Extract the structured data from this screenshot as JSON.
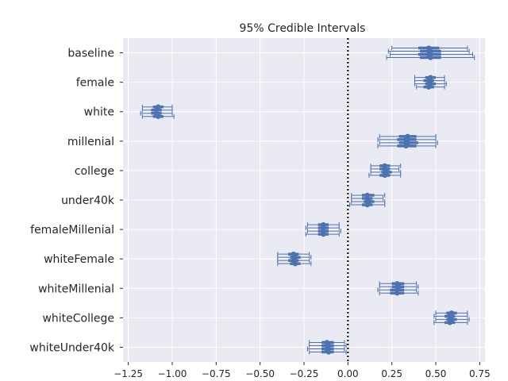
{
  "chart_data": {
    "type": "forest",
    "title": "95% Credible Intervals",
    "xlabel": "",
    "ylabel": "",
    "xlim": [
      -1.28,
      0.78
    ],
    "xticks": [
      -1.25,
      -1.0,
      -0.75,
      -0.5,
      -0.25,
      0.0,
      0.25,
      0.5,
      0.75
    ],
    "xtick_labels": [
      "−1.25",
      "−1.00",
      "−0.75",
      "−0.50",
      "−0.25",
      "0.00",
      "0.25",
      "0.50",
      "0.75"
    ],
    "reference_line": 0.0,
    "grid": true,
    "colors": {
      "background": "#eaeaf2",
      "grid": "#ffffff",
      "marker": "#4c72b0",
      "reference": "#000000"
    },
    "chains_per_variable": 4,
    "variables": [
      {
        "name": "baseline",
        "chains": [
          {
            "mean": 0.46,
            "low": 0.25,
            "high": 0.68,
            "q25": 0.4,
            "q75": 0.52
          },
          {
            "mean": 0.47,
            "low": 0.23,
            "high": 0.69,
            "q25": 0.41,
            "q75": 0.53
          },
          {
            "mean": 0.46,
            "low": 0.24,
            "high": 0.71,
            "q25": 0.4,
            "q75": 0.53
          },
          {
            "mean": 0.47,
            "low": 0.22,
            "high": 0.72,
            "q25": 0.41,
            "q75": 0.53
          }
        ]
      },
      {
        "name": "female",
        "chains": [
          {
            "mean": 0.47,
            "low": 0.38,
            "high": 0.55,
            "q25": 0.44,
            "q75": 0.5
          },
          {
            "mean": 0.46,
            "low": 0.38,
            "high": 0.55,
            "q25": 0.43,
            "q75": 0.49
          },
          {
            "mean": 0.47,
            "low": 0.38,
            "high": 0.56,
            "q25": 0.44,
            "q75": 0.5
          },
          {
            "mean": 0.46,
            "low": 0.39,
            "high": 0.55,
            "q25": 0.43,
            "q75": 0.49
          }
        ]
      },
      {
        "name": "white",
        "chains": [
          {
            "mean": -1.08,
            "low": -1.17,
            "high": -1.0,
            "q25": -1.11,
            "q75": -1.05
          },
          {
            "mean": -1.09,
            "low": -1.17,
            "high": -1.0,
            "q25": -1.12,
            "q75": -1.06
          },
          {
            "mean": -1.09,
            "low": -1.18,
            "high": -1.0,
            "q25": -1.12,
            "q75": -1.06
          },
          {
            "mean": -1.08,
            "low": -1.17,
            "high": -0.99,
            "q25": -1.11,
            "q75": -1.05
          }
        ]
      },
      {
        "name": "millenial",
        "chains": [
          {
            "mean": 0.34,
            "low": 0.18,
            "high": 0.5,
            "q25": 0.29,
            "q75": 0.39
          },
          {
            "mean": 0.33,
            "low": 0.17,
            "high": 0.5,
            "q25": 0.28,
            "q75": 0.39
          },
          {
            "mean": 0.34,
            "low": 0.18,
            "high": 0.51,
            "q25": 0.29,
            "q75": 0.4
          },
          {
            "mean": 0.33,
            "low": 0.17,
            "high": 0.5,
            "q25": 0.28,
            "q75": 0.39
          }
        ]
      },
      {
        "name": "college",
        "chains": [
          {
            "mean": 0.21,
            "low": 0.13,
            "high": 0.3,
            "q25": 0.18,
            "q75": 0.24
          },
          {
            "mean": 0.21,
            "low": 0.13,
            "high": 0.29,
            "q25": 0.18,
            "q75": 0.24
          },
          {
            "mean": 0.22,
            "low": 0.13,
            "high": 0.3,
            "q25": 0.19,
            "q75": 0.25
          },
          {
            "mean": 0.21,
            "low": 0.12,
            "high": 0.3,
            "q25": 0.18,
            "q75": 0.24
          }
        ]
      },
      {
        "name": "under40k",
        "chains": [
          {
            "mean": 0.11,
            "low": 0.02,
            "high": 0.21,
            "q25": 0.08,
            "q75": 0.15
          },
          {
            "mean": 0.11,
            "low": 0.02,
            "high": 0.2,
            "q25": 0.08,
            "q75": 0.14
          },
          {
            "mean": 0.12,
            "low": 0.02,
            "high": 0.21,
            "q25": 0.09,
            "q75": 0.15
          },
          {
            "mean": 0.11,
            "low": 0.01,
            "high": 0.21,
            "q25": 0.08,
            "q75": 0.14
          }
        ]
      },
      {
        "name": "femaleMillenial",
        "chains": [
          {
            "mean": -0.14,
            "low": -0.23,
            "high": -0.05,
            "q25": -0.17,
            "q75": -0.11
          },
          {
            "mean": -0.14,
            "low": -0.24,
            "high": -0.05,
            "q25": -0.17,
            "q75": -0.11
          },
          {
            "mean": -0.14,
            "low": -0.23,
            "high": -0.04,
            "q25": -0.17,
            "q75": -0.11
          },
          {
            "mean": -0.14,
            "low": -0.24,
            "high": -0.05,
            "q25": -0.17,
            "q75": -0.11
          }
        ]
      },
      {
        "name": "whiteFemale",
        "chains": [
          {
            "mean": -0.31,
            "low": -0.4,
            "high": -0.22,
            "q25": -0.34,
            "q75": -0.28
          },
          {
            "mean": -0.3,
            "low": -0.4,
            "high": -0.21,
            "q25": -0.33,
            "q75": -0.27
          },
          {
            "mean": -0.31,
            "low": -0.4,
            "high": -0.22,
            "q25": -0.34,
            "q75": -0.28
          },
          {
            "mean": -0.3,
            "low": -0.4,
            "high": -0.21,
            "q25": -0.33,
            "q75": -0.27
          }
        ]
      },
      {
        "name": "whiteMillenial",
        "chains": [
          {
            "mean": 0.28,
            "low": 0.18,
            "high": 0.39,
            "q25": 0.25,
            "q75": 0.32
          },
          {
            "mean": 0.29,
            "low": 0.18,
            "high": 0.4,
            "q25": 0.25,
            "q75": 0.32
          },
          {
            "mean": 0.28,
            "low": 0.17,
            "high": 0.39,
            "q25": 0.24,
            "q75": 0.32
          },
          {
            "mean": 0.28,
            "low": 0.18,
            "high": 0.4,
            "q25": 0.24,
            "q75": 0.32
          }
        ]
      },
      {
        "name": "whiteCollege",
        "chains": [
          {
            "mean": 0.59,
            "low": 0.5,
            "high": 0.68,
            "q25": 0.56,
            "q75": 0.62
          },
          {
            "mean": 0.58,
            "low": 0.49,
            "high": 0.68,
            "q25": 0.55,
            "q75": 0.61
          },
          {
            "mean": 0.59,
            "low": 0.5,
            "high": 0.69,
            "q25": 0.56,
            "q75": 0.62
          },
          {
            "mean": 0.58,
            "low": 0.49,
            "high": 0.68,
            "q25": 0.55,
            "q75": 0.61
          }
        ]
      },
      {
        "name": "whiteUnder40k",
        "chains": [
          {
            "mean": -0.12,
            "low": -0.22,
            "high": -0.02,
            "q25": -0.15,
            "q75": -0.08
          },
          {
            "mean": -0.11,
            "low": -0.22,
            "high": -0.01,
            "q25": -0.15,
            "q75": -0.08
          },
          {
            "mean": -0.12,
            "low": -0.23,
            "high": -0.02,
            "q25": -0.15,
            "q75": -0.08
          },
          {
            "mean": -0.11,
            "low": -0.22,
            "high": -0.01,
            "q25": -0.15,
            "q75": -0.08
          }
        ]
      }
    ]
  }
}
